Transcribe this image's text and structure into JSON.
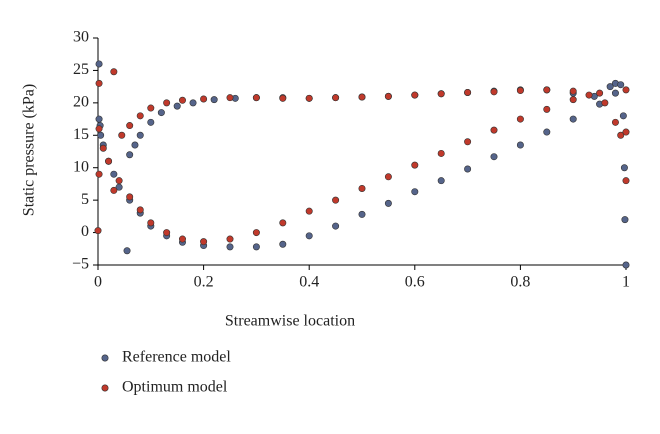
{
  "chart_data": {
    "type": "scatter",
    "xlabel": "Streamwise location",
    "ylabel": "Static pressure (kPa)",
    "xlim": [
      0,
      1
    ],
    "ylim": [
      -5,
      30
    ],
    "xticks": [
      0,
      0.2,
      0.4,
      0.6,
      0.8,
      1
    ],
    "yticks": [
      {
        "value": -5,
        "label": "−5"
      },
      0,
      5,
      10,
      15,
      20,
      25,
      30
    ],
    "legend": "bottom-left",
    "series": [
      {
        "name": "Reference model",
        "color": "#55648a",
        "x": [
          0.002,
          0.002,
          0.004,
          0.06,
          0.07,
          0.08,
          0.1,
          0.12,
          0.15,
          0.18,
          0.22,
          0.26,
          0.3,
          0.35,
          0.4,
          0.45,
          0.5,
          0.55,
          0.6,
          0.65,
          0.7,
          0.75,
          0.8,
          0.85,
          0.9,
          0.94,
          0.97,
          0.98,
          0.99,
          0.995,
          0.997,
          0.998,
          1.0,
          0.005,
          0.01,
          0.02,
          0.03,
          0.04,
          0.055,
          0.06,
          0.08,
          0.1,
          0.13,
          0.16,
          0.2,
          0.25,
          0.3,
          0.35,
          0.4,
          0.45,
          0.5,
          0.55,
          0.6,
          0.65,
          0.7,
          0.75,
          0.8,
          0.85,
          0.9,
          0.95,
          0.98
        ],
        "values": [
          26,
          17.5,
          16.5,
          12,
          13.5,
          15,
          17,
          18.5,
          19.5,
          20,
          20.5,
          20.7,
          20.8,
          20.8,
          20.7,
          20.8,
          20.9,
          21,
          21.2,
          21.4,
          21.6,
          21.8,
          22,
          22,
          21.5,
          21,
          22.5,
          23,
          22.8,
          18,
          10,
          2,
          -5,
          15,
          13.5,
          11,
          9,
          7,
          -2.8,
          5,
          3,
          1,
          -0.5,
          -1.5,
          -2,
          -2.2,
          -2.2,
          -1.8,
          -0.5,
          1,
          2.8,
          4.5,
          6.3,
          8,
          9.8,
          11.7,
          13.5,
          15.5,
          17.5,
          19.8,
          21.5
        ]
      },
      {
        "name": "Optimum model",
        "color": "#c0392b",
        "x": [
          0.002,
          0.03,
          0.045,
          0.06,
          0.08,
          0.1,
          0.13,
          0.16,
          0.2,
          0.25,
          0.3,
          0.35,
          0.4,
          0.45,
          0.5,
          0.55,
          0.6,
          0.65,
          0.7,
          0.75,
          0.8,
          0.85,
          0.9,
          0.93,
          0.96,
          0.98,
          0.99,
          1.0,
          1.0,
          0.0,
          0.002,
          0.002,
          0.01,
          0.02,
          0.03,
          0.04,
          0.06,
          0.08,
          0.1,
          0.13,
          0.16,
          0.2,
          0.25,
          0.3,
          0.35,
          0.4,
          0.45,
          0.5,
          0.55,
          0.6,
          0.65,
          0.7,
          0.75,
          0.8,
          0.85,
          0.9,
          0.95,
          1.0
        ],
        "values": [
          23,
          24.8,
          15,
          16.5,
          18,
          19.2,
          20,
          20.4,
          20.6,
          20.8,
          20.8,
          20.7,
          20.7,
          20.8,
          20.9,
          21,
          21.2,
          21.4,
          21.6,
          21.7,
          21.9,
          22,
          21.8,
          21.2,
          20,
          17,
          15,
          8,
          15.5,
          0.3,
          9,
          16,
          13,
          11,
          6.5,
          8,
          5.5,
          3.5,
          1.5,
          0,
          -1,
          -1.4,
          -1,
          0,
          1.5,
          3.3,
          5,
          6.8,
          8.6,
          10.4,
          12.2,
          14,
          15.8,
          17.5,
          19,
          20.5,
          21.5,
          22
        ]
      }
    ]
  }
}
